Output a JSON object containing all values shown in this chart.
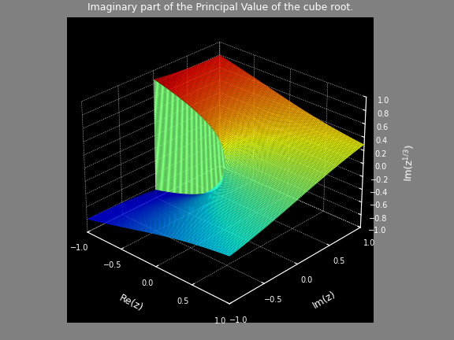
{
  "title": "Imaginary part of the Principal Value of the cube root.",
  "xlabel": "Re(z)",
  "ylabel": "Im(z)",
  "zlabel": "Im(z^{1/3})",
  "background_color": "#808080",
  "n_points": 150,
  "xlim": [
    -1,
    1
  ],
  "ylim": [
    -1,
    1
  ],
  "zlim": [
    -1,
    1
  ],
  "elev": 28,
  "azim": -47,
  "xticks": [
    -1,
    -0.5,
    0,
    0.5,
    1
  ],
  "yticks": [
    -1,
    -0.5,
    0,
    0.5,
    1
  ],
  "zticks": [
    -1,
    -0.8,
    -0.6,
    -0.4,
    -0.2,
    0,
    0.2,
    0.4,
    0.6,
    0.8,
    1.0
  ],
  "figsize": [
    5.76,
    4.32
  ],
  "dpi": 100
}
